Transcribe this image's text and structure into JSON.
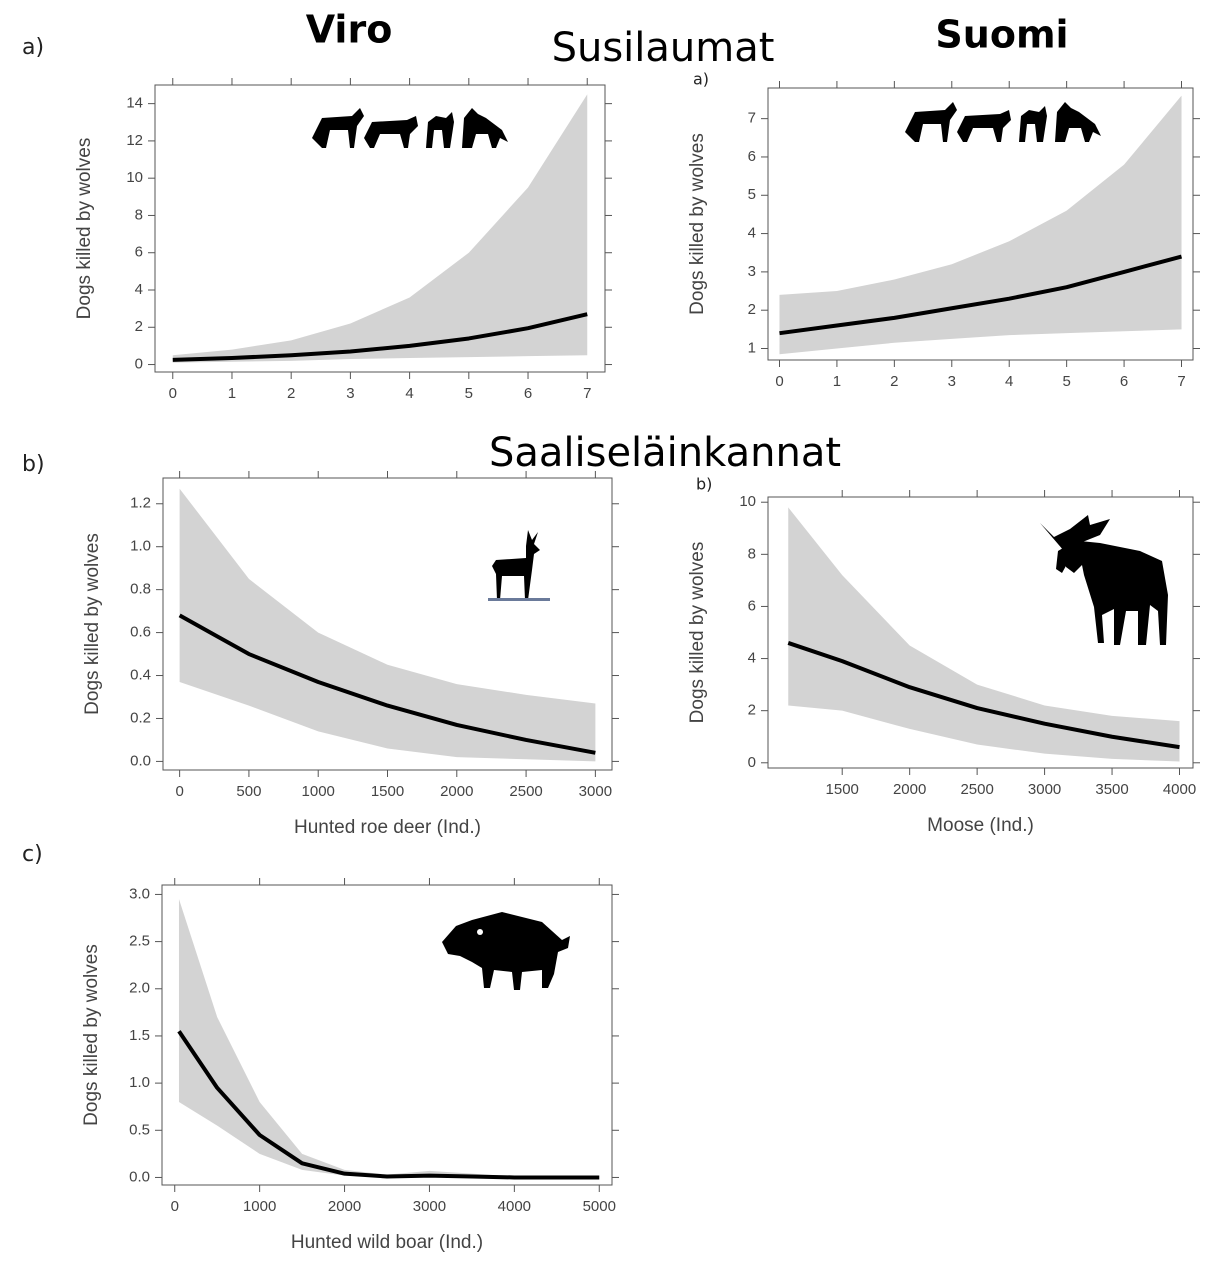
{
  "headers": {
    "left": "Viro",
    "right": "Suomi"
  },
  "sections": [
    "Susilaumat",
    "Saaliseläinkannat"
  ],
  "chart_data": [
    {
      "type": "line",
      "panel": "a)",
      "ylabel": "Dogs killed by wolves",
      "color": "#000000",
      "band_color": "#d3d3d3",
      "x": [
        0,
        1,
        2,
        3,
        4,
        5,
        6,
        7
      ],
      "values": [
        0.25,
        0.35,
        0.5,
        0.7,
        1.0,
        1.4,
        1.95,
        2.7
      ],
      "upper": [
        0.5,
        0.8,
        1.3,
        2.2,
        3.6,
        6,
        9.5,
        14.5
      ],
      "lower": [
        0.1,
        0.15,
        0.2,
        0.3,
        0.35,
        0.4,
        0.45,
        0.5
      ],
      "xlim": [
        -0.3,
        7.3
      ],
      "xticks": [
        0,
        1,
        2,
        3,
        4,
        5,
        6,
        7
      ],
      "ylim": [
        -0.4,
        15
      ],
      "yticks": [
        0,
        2,
        4,
        6,
        8,
        10,
        12,
        14
      ]
    },
    {
      "type": "line",
      "panel": "a)",
      "ylabel": "Dogs killed by wolves",
      "color": "#000000",
      "band_color": "#d3d3d3",
      "x": [
        0,
        1,
        2,
        3,
        4,
        5,
        6,
        7
      ],
      "values": [
        1.4,
        1.6,
        1.8,
        2.05,
        2.3,
        2.6,
        3.0,
        3.4
      ],
      "upper": [
        2.4,
        2.5,
        2.8,
        3.2,
        3.8,
        4.6,
        5.8,
        7.6
      ],
      "lower": [
        0.85,
        1.0,
        1.15,
        1.25,
        1.35,
        1.4,
        1.45,
        1.5
      ],
      "xlim": [
        -0.2,
        7.2
      ],
      "xticks": [
        0,
        1,
        2,
        3,
        4,
        5,
        6,
        7
      ],
      "ylim": [
        0.7,
        7.8
      ],
      "yticks": [
        1,
        2,
        3,
        4,
        5,
        6,
        7
      ]
    },
    {
      "type": "line",
      "panel": "b)",
      "xlabel": "Hunted roe deer (Ind.)",
      "ylabel": "Dogs killed by wolves",
      "color": "#000000",
      "band_color": "#d3d3d3",
      "x": [
        0,
        500,
        1000,
        1500,
        2000,
        2500,
        3000
      ],
      "values": [
        0.68,
        0.5,
        0.37,
        0.26,
        0.17,
        0.1,
        0.04
      ],
      "upper": [
        1.27,
        0.85,
        0.6,
        0.45,
        0.36,
        0.31,
        0.27
      ],
      "lower": [
        0.37,
        0.26,
        0.14,
        0.06,
        0.02,
        0.01,
        0.0
      ],
      "xlim": [
        -120,
        3120
      ],
      "xticks": [
        0,
        500,
        1000,
        1500,
        2000,
        2500,
        3000
      ],
      "ylim": [
        -0.04,
        1.32
      ],
      "yticks": [
        {
          "value": 0,
          "label": "0.0"
        },
        0.2,
        0.4,
        0.6,
        0.8,
        {
          "value": 1,
          "label": "1.0"
        },
        1.2
      ]
    },
    {
      "type": "line",
      "panel": "b)",
      "xlabel": "Moose (Ind.)",
      "ylabel": "Dogs killed by wolves",
      "color": "#000000",
      "band_color": "#d3d3d3",
      "x": [
        1100,
        1500,
        2000,
        2500,
        3000,
        3500,
        4000
      ],
      "values": [
        4.6,
        3.9,
        2.9,
        2.1,
        1.5,
        1.0,
        0.6
      ],
      "upper": [
        9.8,
        7.2,
        4.5,
        3.0,
        2.2,
        1.8,
        1.6
      ],
      "lower": [
        2.2,
        2.0,
        1.3,
        0.7,
        0.35,
        0.15,
        0.05
      ],
      "xlim": [
        950,
        4100
      ],
      "xticks": [
        1500,
        2000,
        2500,
        3000,
        3500,
        4000
      ],
      "ylim": [
        -0.2,
        10.2
      ],
      "yticks": [
        0,
        2,
        4,
        6,
        8,
        10
      ]
    },
    {
      "type": "line",
      "panel": "c)",
      "xlabel": "Hunted wild boar (Ind.)",
      "ylabel": "Dogs killed by wolves",
      "color": "#000000",
      "band_color": "#d3d3d3",
      "x": [
        50,
        500,
        1000,
        1500,
        2000,
        2500,
        3000,
        3500,
        4000,
        5000
      ],
      "values": [
        1.55,
        0.95,
        0.45,
        0.15,
        0.04,
        0.01,
        0.02,
        0.01,
        0.0,
        0.0
      ],
      "upper": [
        2.95,
        1.7,
        0.8,
        0.25,
        0.08,
        0.03,
        0.07,
        0.04,
        0.01,
        0.0
      ],
      "lower": [
        0.8,
        0.55,
        0.25,
        0.08,
        0.02,
        0.0,
        0.0,
        0.0,
        0.0,
        0.0
      ],
      "xlim": [
        -150,
        5150
      ],
      "xticks": [
        0,
        1000,
        2000,
        3000,
        4000,
        5000
      ],
      "ylim": [
        -0.08,
        3.1
      ],
      "yticks": [
        {
          "value": 0,
          "label": "0.0"
        },
        0.5,
        {
          "value": 1,
          "label": "1.0"
        },
        1.5,
        {
          "value": 2,
          "label": "2.0"
        },
        2.5,
        {
          "value": 3,
          "label": "3.0"
        }
      ]
    }
  ]
}
